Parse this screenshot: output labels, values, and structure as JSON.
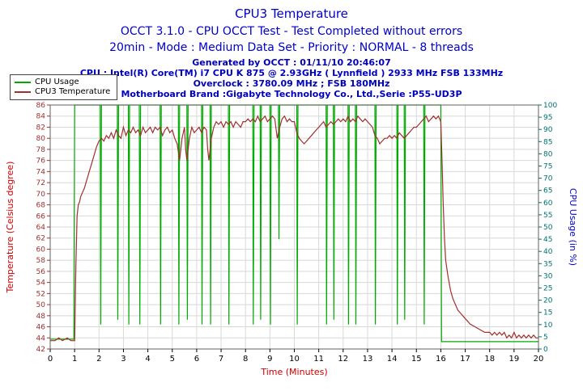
{
  "header": {
    "title": "CPU3 Temperature",
    "subtitle1": "OCCT 3.1.0 - CPU OCCT Test - Test Completed without errors",
    "subtitle2": "20min - Mode : Medium Data Set - Priority : NORMAL - 8 threads",
    "info1": "Generated by OCCT : 01/11/10 20:46:07",
    "info2": "CPU : Intel(R) Core(TM) i7 CPU K 875 @ 2.93GHz ( Lynnfield ) 2933 MHz FSB 133MHz",
    "info3": "Overclock : 3780.09 MHz ; FSB 180MHz",
    "info4": "Motherboard Brand :Gigabyte Technology Co., Ltd.,Serie :P55-UD3P"
  },
  "legend": {
    "items": [
      {
        "label": "CPU Usage",
        "color": "#00aa00"
      },
      {
        "label": "CPU3 Temperature",
        "color": "#a03030"
      }
    ]
  },
  "chart_data": {
    "type": "line",
    "title": "CPU3 Temperature",
    "xlabel": "Time (Minutes)",
    "x_range": [
      0,
      20
    ],
    "x_tick_step": 1,
    "grid": true,
    "legend_position": "top-left",
    "colors": {
      "grid": "#d8d8d8",
      "border": "#606060",
      "x_label": "#cc0000",
      "x_ticks": "#000000"
    },
    "left_axis": {
      "label": "Temperature (Celsius degree)",
      "range": [
        42,
        86
      ],
      "tick_step": 2,
      "color": "#cc0000",
      "tick_color": "#a03030"
    },
    "right_axis": {
      "label": "CPU Usage (in %)",
      "range": [
        0,
        100
      ],
      "tick_step": 5,
      "color": "#0000cc",
      "tick_color": "#007070"
    },
    "series": [
      {
        "name": "CPU Usage",
        "axis": "right",
        "color": "#00aa00",
        "points": [
          [
            0,
            4
          ],
          [
            0.97,
            4
          ],
          [
            1,
            100
          ],
          [
            2.05,
            100
          ],
          [
            2.07,
            10
          ],
          [
            2.1,
            100
          ],
          [
            2.75,
            100
          ],
          [
            2.77,
            12
          ],
          [
            2.8,
            100
          ],
          [
            3.2,
            100
          ],
          [
            3.22,
            10
          ],
          [
            3.25,
            100
          ],
          [
            3.65,
            100
          ],
          [
            3.67,
            10
          ],
          [
            3.7,
            100
          ],
          [
            4.5,
            100
          ],
          [
            4.52,
            10
          ],
          [
            4.55,
            100
          ],
          [
            5.25,
            100
          ],
          [
            5.27,
            10
          ],
          [
            5.3,
            100
          ],
          [
            5.6,
            100
          ],
          [
            5.62,
            12
          ],
          [
            5.65,
            100
          ],
          [
            6.2,
            100
          ],
          [
            6.22,
            10
          ],
          [
            6.25,
            100
          ],
          [
            6.55,
            100
          ],
          [
            6.57,
            10
          ],
          [
            6.6,
            100
          ],
          [
            7.3,
            100
          ],
          [
            7.32,
            10
          ],
          [
            7.35,
            100
          ],
          [
            8.3,
            100
          ],
          [
            8.32,
            10
          ],
          [
            8.35,
            100
          ],
          [
            8.6,
            100
          ],
          [
            8.62,
            12
          ],
          [
            8.65,
            100
          ],
          [
            9,
            100
          ],
          [
            9.02,
            10
          ],
          [
            9.05,
            100
          ],
          [
            9.35,
            100
          ],
          [
            9.37,
            45
          ],
          [
            9.4,
            100
          ],
          [
            10.1,
            100
          ],
          [
            10.12,
            10
          ],
          [
            10.15,
            100
          ],
          [
            11.3,
            100
          ],
          [
            11.32,
            10
          ],
          [
            11.35,
            100
          ],
          [
            11.6,
            100
          ],
          [
            11.62,
            12
          ],
          [
            11.65,
            100
          ],
          [
            12.2,
            100
          ],
          [
            12.22,
            10
          ],
          [
            12.25,
            100
          ],
          [
            12.5,
            100
          ],
          [
            12.52,
            10
          ],
          [
            12.55,
            100
          ],
          [
            13.3,
            100
          ],
          [
            13.32,
            10
          ],
          [
            13.35,
            100
          ],
          [
            14.2,
            100
          ],
          [
            14.22,
            10
          ],
          [
            14.25,
            100
          ],
          [
            14.5,
            100
          ],
          [
            14.52,
            12
          ],
          [
            14.55,
            100
          ],
          [
            15.3,
            100
          ],
          [
            15.32,
            10
          ],
          [
            15.35,
            100
          ],
          [
            16,
            100
          ],
          [
            16.03,
            3
          ],
          [
            20,
            3
          ]
        ]
      },
      {
        "name": "CPU3 Temperature",
        "axis": "left",
        "color": "#a03030",
        "points": [
          [
            0,
            43.5
          ],
          [
            0.2,
            43.5
          ],
          [
            0.35,
            44
          ],
          [
            0.5,
            43.5
          ],
          [
            0.7,
            44
          ],
          [
            0.85,
            43.5
          ],
          [
            1,
            43.5
          ],
          [
            1.05,
            57
          ],
          [
            1.1,
            66
          ],
          [
            1.15,
            68
          ],
          [
            1.2,
            68.5
          ],
          [
            1.25,
            69.5
          ],
          [
            1.3,
            70
          ],
          [
            1.4,
            71
          ],
          [
            1.5,
            72.5
          ],
          [
            1.6,
            74
          ],
          [
            1.7,
            75.5
          ],
          [
            1.8,
            77
          ],
          [
            1.9,
            78.5
          ],
          [
            2,
            79.5
          ],
          [
            2.1,
            80
          ],
          [
            2.2,
            79.5
          ],
          [
            2.3,
            80.5
          ],
          [
            2.4,
            80
          ],
          [
            2.5,
            81
          ],
          [
            2.6,
            80
          ],
          [
            2.7,
            81.5
          ],
          [
            2.8,
            80.5
          ],
          [
            2.9,
            80
          ],
          [
            3,
            82
          ],
          [
            3.1,
            80.5
          ],
          [
            3.2,
            81.5
          ],
          [
            3.3,
            81
          ],
          [
            3.4,
            82
          ],
          [
            3.5,
            81
          ],
          [
            3.6,
            81.5
          ],
          [
            3.7,
            80.5
          ],
          [
            3.8,
            82
          ],
          [
            3.9,
            81
          ],
          [
            4,
            81.5
          ],
          [
            4.1,
            82
          ],
          [
            4.2,
            81
          ],
          [
            4.3,
            82
          ],
          [
            4.4,
            81.5
          ],
          [
            4.5,
            82
          ],
          [
            4.6,
            80.5
          ],
          [
            4.7,
            81.5
          ],
          [
            4.8,
            82
          ],
          [
            4.9,
            81
          ],
          [
            5,
            81.5
          ],
          [
            5.1,
            80
          ],
          [
            5.2,
            79
          ],
          [
            5.3,
            76
          ],
          [
            5.4,
            80
          ],
          [
            5.5,
            82
          ],
          [
            5.55,
            78
          ],
          [
            5.6,
            76
          ],
          [
            5.7,
            80
          ],
          [
            5.8,
            82
          ],
          [
            5.9,
            81
          ],
          [
            6,
            81.5
          ],
          [
            6.1,
            82
          ],
          [
            6.2,
            81
          ],
          [
            6.3,
            82
          ],
          [
            6.4,
            81.5
          ],
          [
            6.45,
            78
          ],
          [
            6.5,
            76
          ],
          [
            6.6,
            80
          ],
          [
            6.7,
            82
          ],
          [
            6.8,
            83
          ],
          [
            6.9,
            82.5
          ],
          [
            7,
            83
          ],
          [
            7.1,
            82
          ],
          [
            7.2,
            83
          ],
          [
            7.3,
            82.5
          ],
          [
            7.4,
            83
          ],
          [
            7.5,
            82
          ],
          [
            7.6,
            83
          ],
          [
            7.7,
            82.5
          ],
          [
            7.8,
            82
          ],
          [
            7.9,
            83
          ],
          [
            8,
            83
          ],
          [
            8.1,
            83.5
          ],
          [
            8.2,
            83
          ],
          [
            8.3,
            83.5
          ],
          [
            8.4,
            83
          ],
          [
            8.5,
            84
          ],
          [
            8.6,
            83
          ],
          [
            8.7,
            83.5
          ],
          [
            8.8,
            84
          ],
          [
            8.9,
            83
          ],
          [
            9,
            83.5
          ],
          [
            9.1,
            84
          ],
          [
            9.2,
            83.5
          ],
          [
            9.3,
            80
          ],
          [
            9.4,
            82
          ],
          [
            9.5,
            83.5
          ],
          [
            9.6,
            84
          ],
          [
            9.7,
            83
          ],
          [
            9.8,
            83.5
          ],
          [
            9.9,
            83
          ],
          [
            10,
            83
          ],
          [
            10.1,
            81
          ],
          [
            10.2,
            80
          ],
          [
            10.3,
            79.5
          ],
          [
            10.4,
            79
          ],
          [
            10.5,
            79.5
          ],
          [
            10.6,
            80
          ],
          [
            10.7,
            80.5
          ],
          [
            10.8,
            81
          ],
          [
            10.9,
            81.5
          ],
          [
            11,
            82
          ],
          [
            11.1,
            82.5
          ],
          [
            11.2,
            83
          ],
          [
            11.3,
            82
          ],
          [
            11.4,
            82.5
          ],
          [
            11.5,
            83
          ],
          [
            11.6,
            82.5
          ],
          [
            11.7,
            83
          ],
          [
            11.8,
            83.5
          ],
          [
            11.9,
            83
          ],
          [
            12,
            83.5
          ],
          [
            12.1,
            83
          ],
          [
            12.2,
            84
          ],
          [
            12.3,
            83
          ],
          [
            12.4,
            83.5
          ],
          [
            12.5,
            83
          ],
          [
            12.6,
            84
          ],
          [
            12.7,
            83.5
          ],
          [
            12.8,
            83
          ],
          [
            12.9,
            83.5
          ],
          [
            13,
            83
          ],
          [
            13.1,
            82.5
          ],
          [
            13.2,
            82
          ],
          [
            13.3,
            80.5
          ],
          [
            13.4,
            80
          ],
          [
            13.5,
            79
          ],
          [
            13.6,
            79.5
          ],
          [
            13.7,
            80
          ],
          [
            13.8,
            80
          ],
          [
            13.9,
            80.5
          ],
          [
            14,
            80
          ],
          [
            14.1,
            80.5
          ],
          [
            14.2,
            80
          ],
          [
            14.3,
            81
          ],
          [
            14.4,
            80.5
          ],
          [
            14.5,
            80
          ],
          [
            14.6,
            80.5
          ],
          [
            14.7,
            81
          ],
          [
            14.8,
            81.5
          ],
          [
            14.9,
            82
          ],
          [
            15,
            82
          ],
          [
            15.1,
            82.5
          ],
          [
            15.2,
            83
          ],
          [
            15.3,
            83.5
          ],
          [
            15.4,
            84
          ],
          [
            15.5,
            83
          ],
          [
            15.6,
            83.5
          ],
          [
            15.7,
            84
          ],
          [
            15.8,
            83.5
          ],
          [
            15.9,
            84
          ],
          [
            16,
            83
          ],
          [
            16.05,
            76
          ],
          [
            16.1,
            68
          ],
          [
            16.15,
            62
          ],
          [
            16.2,
            58
          ],
          [
            16.3,
            55
          ],
          [
            16.4,
            52.5
          ],
          [
            16.5,
            51
          ],
          [
            16.6,
            50
          ],
          [
            16.7,
            49
          ],
          [
            16.8,
            48.5
          ],
          [
            16.9,
            48
          ],
          [
            17,
            47.5
          ],
          [
            17.1,
            47
          ],
          [
            17.2,
            46.5
          ],
          [
            17.4,
            46
          ],
          [
            17.6,
            45.5
          ],
          [
            17.8,
            45
          ],
          [
            18,
            45
          ],
          [
            18.1,
            44.5
          ],
          [
            18.2,
            45
          ],
          [
            18.3,
            44.5
          ],
          [
            18.4,
            45
          ],
          [
            18.5,
            44.5
          ],
          [
            18.6,
            45
          ],
          [
            18.7,
            44
          ],
          [
            18.8,
            44.5
          ],
          [
            18.9,
            44
          ],
          [
            19,
            45
          ],
          [
            19.1,
            44
          ],
          [
            19.2,
            44.5
          ],
          [
            19.3,
            44
          ],
          [
            19.4,
            44.5
          ],
          [
            19.5,
            44
          ],
          [
            19.6,
            44.5
          ],
          [
            19.7,
            44
          ],
          [
            19.8,
            44.5
          ],
          [
            19.9,
            44
          ],
          [
            20,
            44
          ]
        ]
      }
    ]
  }
}
